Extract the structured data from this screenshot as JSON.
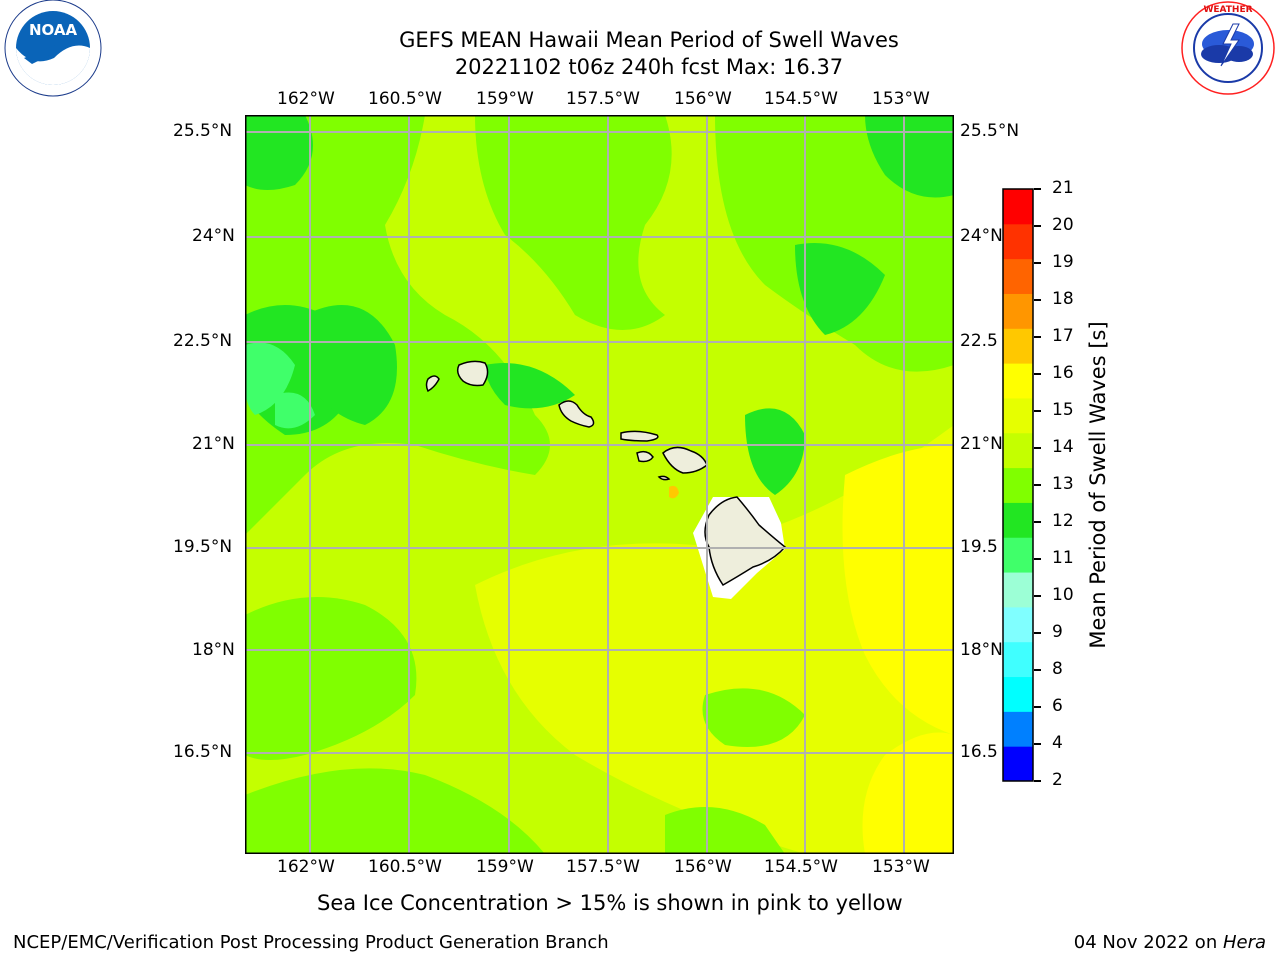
{
  "header": {
    "title_line1": "GEFS MEAN Hawaii Mean Period of Swell Waves",
    "title_line2": "20221102 t06z 240h fcst   Max: 16.37"
  },
  "logos": {
    "left": {
      "text": "NOAA",
      "ring_text": "NATIONAL OCEANIC AND ATMOSPHERIC ADMINISTRATION · U.S. DEPARTMENT OF COMMERCE"
    },
    "right": {
      "ring_text": "NATIONAL WEATHER SERVICE"
    }
  },
  "map": {
    "lon_labels": [
      "162°W",
      "160.5°W",
      "159°W",
      "157.5°W",
      "156°W",
      "154.5°W",
      "153°W"
    ],
    "lat_labels_left": [
      "25.5°N",
      "24°N",
      "22.5°N",
      "21°N",
      "19.5°N",
      "18°N",
      "16.5°N"
    ],
    "lat_labels_right": [
      "25.5°N",
      "24°N",
      "22.5",
      "21°N",
      "19.5",
      "18°N",
      "16.5"
    ],
    "grid": true
  },
  "colorbar": {
    "label": "Mean Period of Swell Waves [s]",
    "ticks": [
      "2",
      "4",
      "6",
      "8",
      "9",
      "10",
      "11",
      "12",
      "13",
      "14",
      "15",
      "16",
      "17",
      "18",
      "19",
      "20",
      "21"
    ],
    "colors": [
      "#0000ff",
      "#0080ff",
      "#00ffff",
      "#40ffff",
      "#80ffff",
      "#9cffd6",
      "#40ff6a",
      "#22e622",
      "#80ff00",
      "#c4ff00",
      "#e6ff00",
      "#ffff00",
      "#ffc800",
      "#ff9600",
      "#ff6400",
      "#ff3200",
      "#ff0000"
    ]
  },
  "note": "Sea Ice Concentration > 15% is shown in pink to yellow",
  "footer": {
    "left": "NCEP/EMC/Verification Post Processing Product Generation Branch",
    "date": "04 Nov 2022 on ",
    "machine": "Hera"
  }
}
